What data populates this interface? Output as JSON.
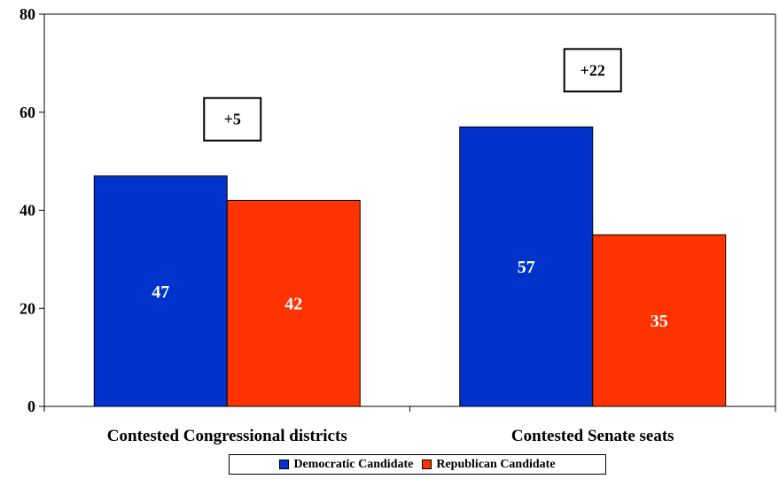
{
  "chart_data": {
    "type": "bar",
    "categories": [
      "Contested Congressional districts",
      "Contested Senate seats"
    ],
    "series": [
      {
        "name": "Democratic Candidate",
        "values": [
          47,
          57
        ],
        "color": "#0033cc"
      },
      {
        "name": "Republican Candidate",
        "values": [
          42,
          35
        ],
        "color": "#ff3300"
      }
    ],
    "ylim": [
      0,
      80
    ],
    "yticks": [
      0,
      20,
      40,
      60,
      80
    ],
    "annotations": [
      "+5",
      "+22"
    ],
    "grid": false,
    "legend_position": "bottom-center"
  }
}
